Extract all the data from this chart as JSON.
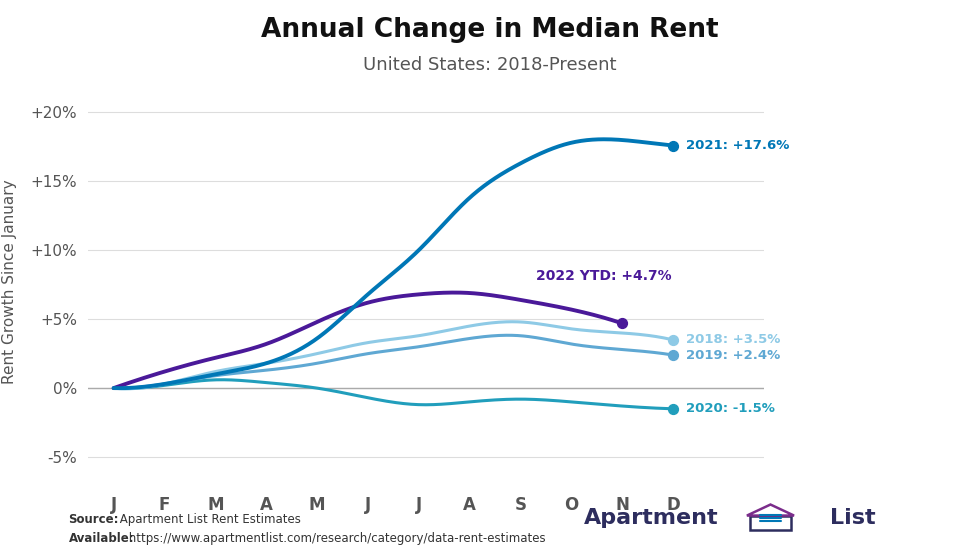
{
  "title": "Annual Change in Median Rent",
  "subtitle": "United States: 2018-Present",
  "ylabel": "Rent Growth Since January",
  "xlabel_ticks": [
    "J",
    "F",
    "M",
    "A",
    "M",
    "J",
    "J",
    "A",
    "S",
    "O",
    "N",
    "D"
  ],
  "yticks": [
    -0.05,
    0.0,
    0.05,
    0.1,
    0.15,
    0.2
  ],
  "ytick_labels": [
    "-5%",
    "0%",
    "+5%",
    "+10%",
    "+15%",
    "+20%"
  ],
  "ylim": [
    -0.07,
    0.225
  ],
  "xlim": [
    -0.5,
    12.8
  ],
  "background_color": "#ffffff",
  "series": {
    "2018": {
      "color": "#8ecae6",
      "label": "2018: +3.5%",
      "linewidth": 2.2,
      "values": [
        0.0,
        0.003,
        0.012,
        0.018,
        0.025,
        0.033,
        0.038,
        0.045,
        0.048,
        0.043,
        0.04,
        0.035
      ]
    },
    "2019": {
      "color": "#5fa8d3",
      "label": "2019: +2.4%",
      "linewidth": 2.2,
      "values": [
        0.0,
        0.003,
        0.009,
        0.013,
        0.018,
        0.025,
        0.03,
        0.036,
        0.038,
        0.032,
        0.028,
        0.024
      ]
    },
    "2020": {
      "color": "#219ebc",
      "label": "2020: -1.5%",
      "linewidth": 2.2,
      "values": [
        0.0,
        0.002,
        0.006,
        0.004,
        0.0,
        -0.007,
        -0.012,
        -0.01,
        -0.008,
        -0.01,
        -0.013,
        -0.015
      ]
    },
    "2021": {
      "color": "#0077b6",
      "label": "2021: +17.6%",
      "linewidth": 2.8,
      "values": [
        0.0,
        0.003,
        0.01,
        0.018,
        0.036,
        0.068,
        0.1,
        0.138,
        0.163,
        0.178,
        0.18,
        0.176
      ]
    },
    "2022": {
      "color": "#4a1999",
      "label": "2022 YTD: +4.7%",
      "linewidth": 2.8,
      "values": [
        0.0,
        0.012,
        0.022,
        0.032,
        0.048,
        0.062,
        0.068,
        0.069,
        0.064,
        0.057,
        0.047,
        null
      ]
    }
  },
  "label_2021_color": "#0077b6",
  "label_2018_color": "#8ecae6",
  "label_2019_color": "#5fa8d3",
  "label_2020_color": "#219ebc",
  "label_2022_color": "#4a1999",
  "zero_line_color": "#aaaaaa",
  "grid_color": "#dddddd",
  "source_bold": "Source:",
  "source_rest": " Apartment List Rent Estimates",
  "available_bold": "Available:",
  "available_rest": " https://www.apartmentlist.com/research/category/data-rent-estimates",
  "logo_text1": "Apartment",
  "logo_text2": "List",
  "logo_color": "#2d2d5e",
  "logo_icon_purple": "#7b2d8b",
  "logo_icon_blue": "#0077b6"
}
